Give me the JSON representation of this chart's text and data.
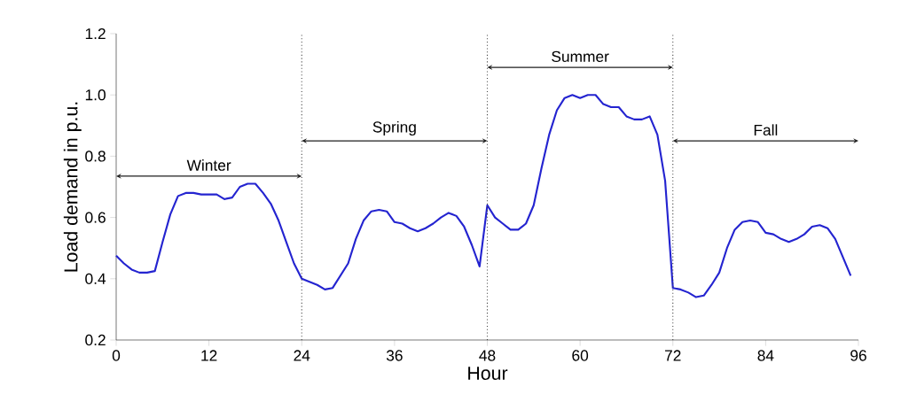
{
  "chart_data": {
    "type": "line",
    "xlabel": "Hour",
    "ylabel": "Load demand in p.u.",
    "x": [
      0,
      1,
      2,
      3,
      4,
      5,
      6,
      7,
      8,
      9,
      10,
      11,
      12,
      13,
      14,
      15,
      16,
      17,
      18,
      19,
      20,
      21,
      22,
      23,
      24,
      25,
      26,
      27,
      28,
      29,
      30,
      31,
      32,
      33,
      34,
      35,
      36,
      37,
      38,
      39,
      40,
      41,
      42,
      43,
      44,
      45,
      46,
      47,
      48,
      49,
      50,
      51,
      52,
      53,
      54,
      55,
      56,
      57,
      58,
      59,
      60,
      61,
      62,
      63,
      64,
      65,
      66,
      67,
      68,
      69,
      70,
      71,
      72,
      73,
      74,
      75,
      76,
      77,
      78,
      79,
      80,
      81,
      82,
      83,
      84,
      85,
      86,
      87,
      88,
      89,
      90,
      91,
      92,
      93,
      94,
      95
    ],
    "series": [
      {
        "color": "#2424d0",
        "values": [
          0.475,
          0.45,
          0.43,
          0.42,
          0.42,
          0.425,
          0.52,
          0.61,
          0.67,
          0.68,
          0.68,
          0.675,
          0.675,
          0.675,
          0.66,
          0.665,
          0.7,
          0.71,
          0.71,
          0.68,
          0.645,
          0.59,
          0.52,
          0.45,
          0.4,
          0.39,
          0.38,
          0.365,
          0.37,
          0.41,
          0.45,
          0.53,
          0.59,
          0.62,
          0.625,
          0.62,
          0.585,
          0.58,
          0.565,
          0.555,
          0.565,
          0.58,
          0.6,
          0.615,
          0.605,
          0.57,
          0.51,
          0.44,
          0.64,
          0.6,
          0.58,
          0.56,
          0.56,
          0.58,
          0.64,
          0.76,
          0.87,
          0.95,
          0.99,
          1.0,
          0.99,
          1.0,
          1.0,
          0.97,
          0.96,
          0.96,
          0.93,
          0.92,
          0.92,
          0.93,
          0.87,
          0.72,
          0.37,
          0.365,
          0.355,
          0.34,
          0.345,
          0.38,
          0.42,
          0.5,
          0.56,
          0.585,
          0.59,
          0.585,
          0.55,
          0.545,
          0.53,
          0.52,
          0.53,
          0.545,
          0.57,
          0.575,
          0.565,
          0.53,
          0.47,
          0.41
        ]
      }
    ],
    "xlim": [
      0,
      96
    ],
    "xticks": [
      0,
      12,
      24,
      36,
      48,
      60,
      72,
      84,
      96
    ],
    "ylim": [
      0.2,
      1.2
    ],
    "yticks": [
      0.2,
      0.4,
      0.6,
      0.8,
      {
        "value": 1,
        "label": "1.0"
      },
      1.2
    ],
    "ref_lines": [
      {
        "axis": "x",
        "value": 24,
        "color": "#444444",
        "line_style": "dotted"
      },
      {
        "axis": "x",
        "value": 48,
        "color": "#444444",
        "line_style": "dotted"
      },
      {
        "axis": "x",
        "value": 72,
        "color": "#444444",
        "line_style": "dotted"
      }
    ],
    "annotations": [
      "Winter",
      "Spring",
      "Summer",
      "Fall"
    ],
    "grid": false,
    "marker": "none",
    "line_style": "solid"
  }
}
